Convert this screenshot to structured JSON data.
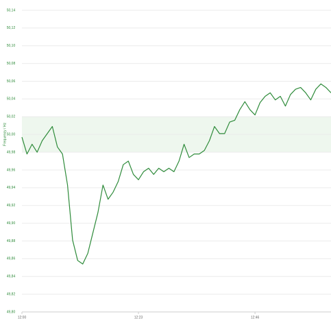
{
  "chart_data": {
    "type": "line",
    "y_label": "Frequency / Hz",
    "x": [
      "12:00",
      "12:01",
      "12:02",
      "12:03",
      "12:04",
      "12:05",
      "12:06",
      "12:07",
      "12:08",
      "12:09",
      "12:10",
      "12:11",
      "12:12",
      "12:13",
      "12:14",
      "12:15",
      "12:16",
      "12:17",
      "12:18",
      "12:19",
      "12:20",
      "12:21",
      "12:22",
      "12:23",
      "12:24",
      "12:25",
      "12:26",
      "12:27",
      "12:28",
      "12:29",
      "12:30",
      "12:31",
      "12:32",
      "12:33",
      "12:34",
      "12:35",
      "12:36",
      "12:37",
      "12:38",
      "12:39",
      "12:40",
      "12:41",
      "12:42",
      "12:43",
      "12:44",
      "12:45",
      "12:46",
      "12:47",
      "12:48",
      "12:49",
      "12:50",
      "12:51",
      "12:52",
      "12:53",
      "12:54",
      "12:55",
      "12:56",
      "12:57",
      "12:58",
      "12:59",
      "13:00",
      "13:01"
    ],
    "series": [
      {
        "name": "Frequency",
        "color": "#2e8b3a",
        "values": [
          49.997,
          49.978,
          49.989,
          49.98,
          49.993,
          50.001,
          50.009,
          49.986,
          49.978,
          49.943,
          49.881,
          49.858,
          49.854,
          49.866,
          49.889,
          49.912,
          49.943,
          49.927,
          49.935,
          49.947,
          49.966,
          49.97,
          49.955,
          49.949,
          49.958,
          49.962,
          49.955,
          49.962,
          49.958,
          49.962,
          49.958,
          49.97,
          49.989,
          49.974,
          49.978,
          49.978,
          49.982,
          49.993,
          50.009,
          50.001,
          50.001,
          50.014,
          50.016,
          50.028,
          50.037,
          50.028,
          50.022,
          50.036,
          50.043,
          50.047,
          50.039,
          50.043,
          50.032,
          50.045,
          50.051,
          50.053,
          50.047,
          50.039,
          50.051,
          50.057,
          50.053,
          50.047
        ]
      }
    ],
    "band": [
      49.98,
      50.02
    ],
    "band_color": "#eef7ee",
    "xlim": [
      "12:00",
      "13:01"
    ],
    "xticks": [
      "12:00",
      "12:23",
      "12:46"
    ],
    "ylim": [
      49.8,
      50.14
    ],
    "yticks": [
      {
        "value": 49.8,
        "label": "49,80"
      },
      {
        "value": 49.82,
        "label": "49,82"
      },
      {
        "value": 49.84,
        "label": "49,84"
      },
      {
        "value": 49.86,
        "label": "49,86"
      },
      {
        "value": 49.88,
        "label": "49,88"
      },
      {
        "value": 49.9,
        "label": "49,90"
      },
      {
        "value": 49.92,
        "label": "49,92"
      },
      {
        "value": 49.94,
        "label": "49,94"
      },
      {
        "value": 49.96,
        "label": "49,96"
      },
      {
        "value": 49.98,
        "label": "49,98"
      },
      {
        "value": 50,
        "label": "50,00"
      },
      {
        "value": 50.02,
        "label": "50,02"
      },
      {
        "value": 50.04,
        "label": "50,04"
      },
      {
        "value": 50.06,
        "label": "50,06"
      },
      {
        "value": 50.08,
        "label": "50,08"
      },
      {
        "value": 50.1,
        "label": "50,10"
      },
      {
        "value": 50.12,
        "label": "50,12"
      },
      {
        "value": 50.14,
        "label": "50,14"
      }
    ],
    "grid": true
  }
}
